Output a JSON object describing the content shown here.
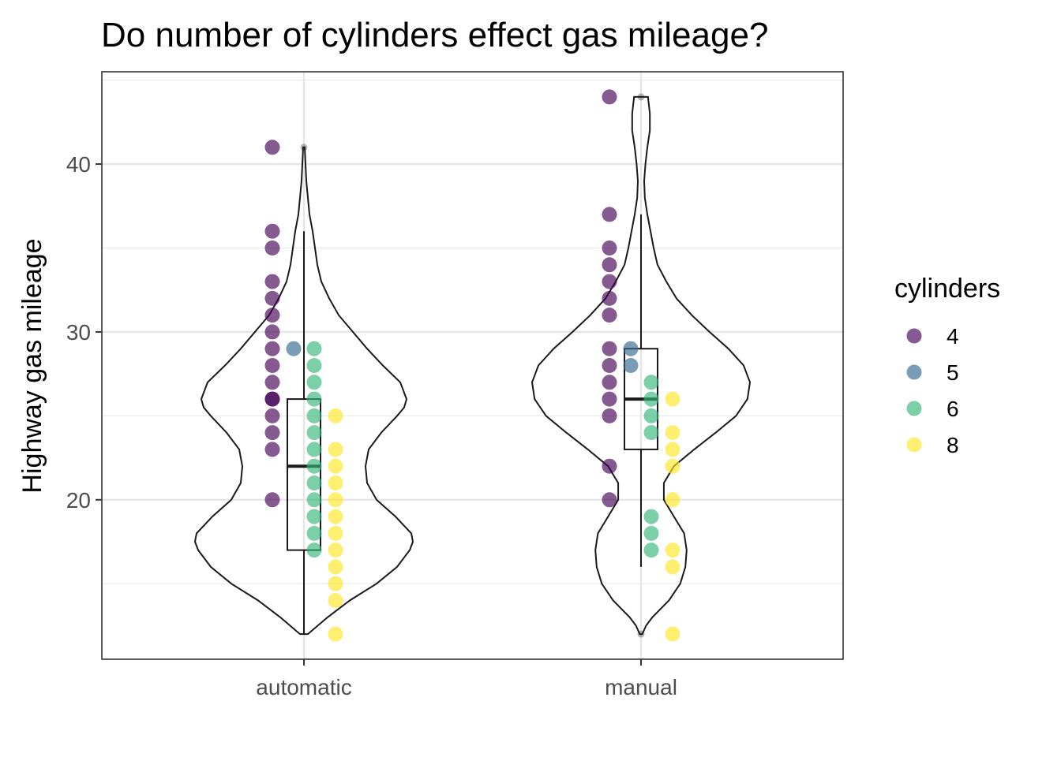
{
  "chart_data": {
    "type": "violin",
    "title": "Do number of cylinders effect gas mileage?",
    "xlabel": "",
    "ylabel": "Highway gas mileage",
    "categories": [
      "automatic",
      "manual"
    ],
    "ylim": [
      10.5,
      45.5
    ],
    "y_ticks": [
      20,
      30,
      40
    ],
    "grid": true,
    "legend": {
      "title": "cylinders",
      "position": "right",
      "entries": [
        {
          "label": "4",
          "color": "#440154"
        },
        {
          "label": "5",
          "color": "#31688e"
        },
        {
          "label": "6",
          "color": "#35b779"
        },
        {
          "label": "8",
          "color": "#fde725"
        }
      ]
    },
    "violins": [
      {
        "category": "automatic",
        "profile": [
          [
            12,
            5
          ],
          [
            13,
            30
          ],
          [
            14,
            58
          ],
          [
            15,
            92
          ],
          [
            16,
            118
          ],
          [
            17,
            134
          ],
          [
            17.5,
            138
          ],
          [
            18,
            136
          ],
          [
            19,
            116
          ],
          [
            20,
            92
          ],
          [
            21,
            80
          ],
          [
            22,
            78
          ],
          [
            23,
            82
          ],
          [
            24,
            98
          ],
          [
            25,
            118
          ],
          [
            25.5,
            127
          ],
          [
            26,
            130
          ],
          [
            27,
            122
          ],
          [
            28,
            100
          ],
          [
            29,
            80
          ],
          [
            30,
            62
          ],
          [
            31,
            44
          ],
          [
            32,
            32
          ],
          [
            33,
            22
          ],
          [
            34,
            17
          ],
          [
            35,
            14
          ],
          [
            36,
            11
          ],
          [
            37,
            7
          ],
          [
            38,
            5
          ],
          [
            39,
            3
          ],
          [
            40,
            2
          ],
          [
            41,
            1
          ]
        ]
      },
      {
        "category": "manual",
        "profile": [
          [
            12,
            2
          ],
          [
            12.5,
            8
          ],
          [
            13,
            18
          ],
          [
            14,
            44
          ],
          [
            15,
            62
          ],
          [
            16,
            70
          ],
          [
            17,
            72
          ],
          [
            18,
            68
          ],
          [
            19,
            52
          ],
          [
            20,
            36
          ],
          [
            21,
            36
          ],
          [
            22,
            52
          ],
          [
            23,
            84
          ],
          [
            24,
            118
          ],
          [
            25,
            150
          ],
          [
            26,
            168
          ],
          [
            27,
            172
          ],
          [
            28,
            162
          ],
          [
            29,
            138
          ],
          [
            30,
            108
          ],
          [
            31,
            80
          ],
          [
            32,
            56
          ],
          [
            33,
            40
          ],
          [
            34,
            26
          ],
          [
            35,
            20
          ],
          [
            36,
            15
          ],
          [
            37,
            10
          ],
          [
            38,
            6
          ],
          [
            39,
            5
          ],
          [
            40,
            7
          ],
          [
            41,
            10
          ],
          [
            42,
            14
          ],
          [
            43,
            14
          ],
          [
            44,
            11
          ]
        ]
      }
    ],
    "boxplots": [
      {
        "category": "automatic",
        "q1": 17,
        "median": 22,
        "q3": 26,
        "whisker_low": 12,
        "whisker_high": 36,
        "outliers": [
          41
        ]
      },
      {
        "category": "manual",
        "q1": 23,
        "median": 26,
        "q3": 29,
        "whisker_low": 16,
        "whisker_high": 37,
        "outliers": [
          12,
          44
        ]
      }
    ],
    "points": {
      "automatic": {
        "4": [
          20,
          23,
          24,
          25,
          26,
          26,
          27,
          28,
          29,
          30,
          31,
          32,
          33,
          35,
          36,
          41
        ],
        "5": [
          29
        ],
        "6": [
          17,
          18,
          19,
          20,
          21,
          22,
          23,
          24,
          25,
          26,
          27,
          28,
          29
        ],
        "8": [
          12,
          14,
          15,
          16,
          17,
          18,
          19,
          20,
          21,
          22,
          23,
          25
        ]
      },
      "manual": {
        "4": [
          20,
          22,
          25,
          26,
          27,
          28,
          29,
          31,
          32,
          33,
          34,
          35,
          37,
          44
        ],
        "5": [
          28,
          29
        ],
        "6": [
          17,
          18,
          19,
          24,
          25,
          26,
          27
        ],
        "8": [
          12,
          16,
          17,
          20,
          22,
          23,
          24,
          26
        ]
      }
    }
  }
}
